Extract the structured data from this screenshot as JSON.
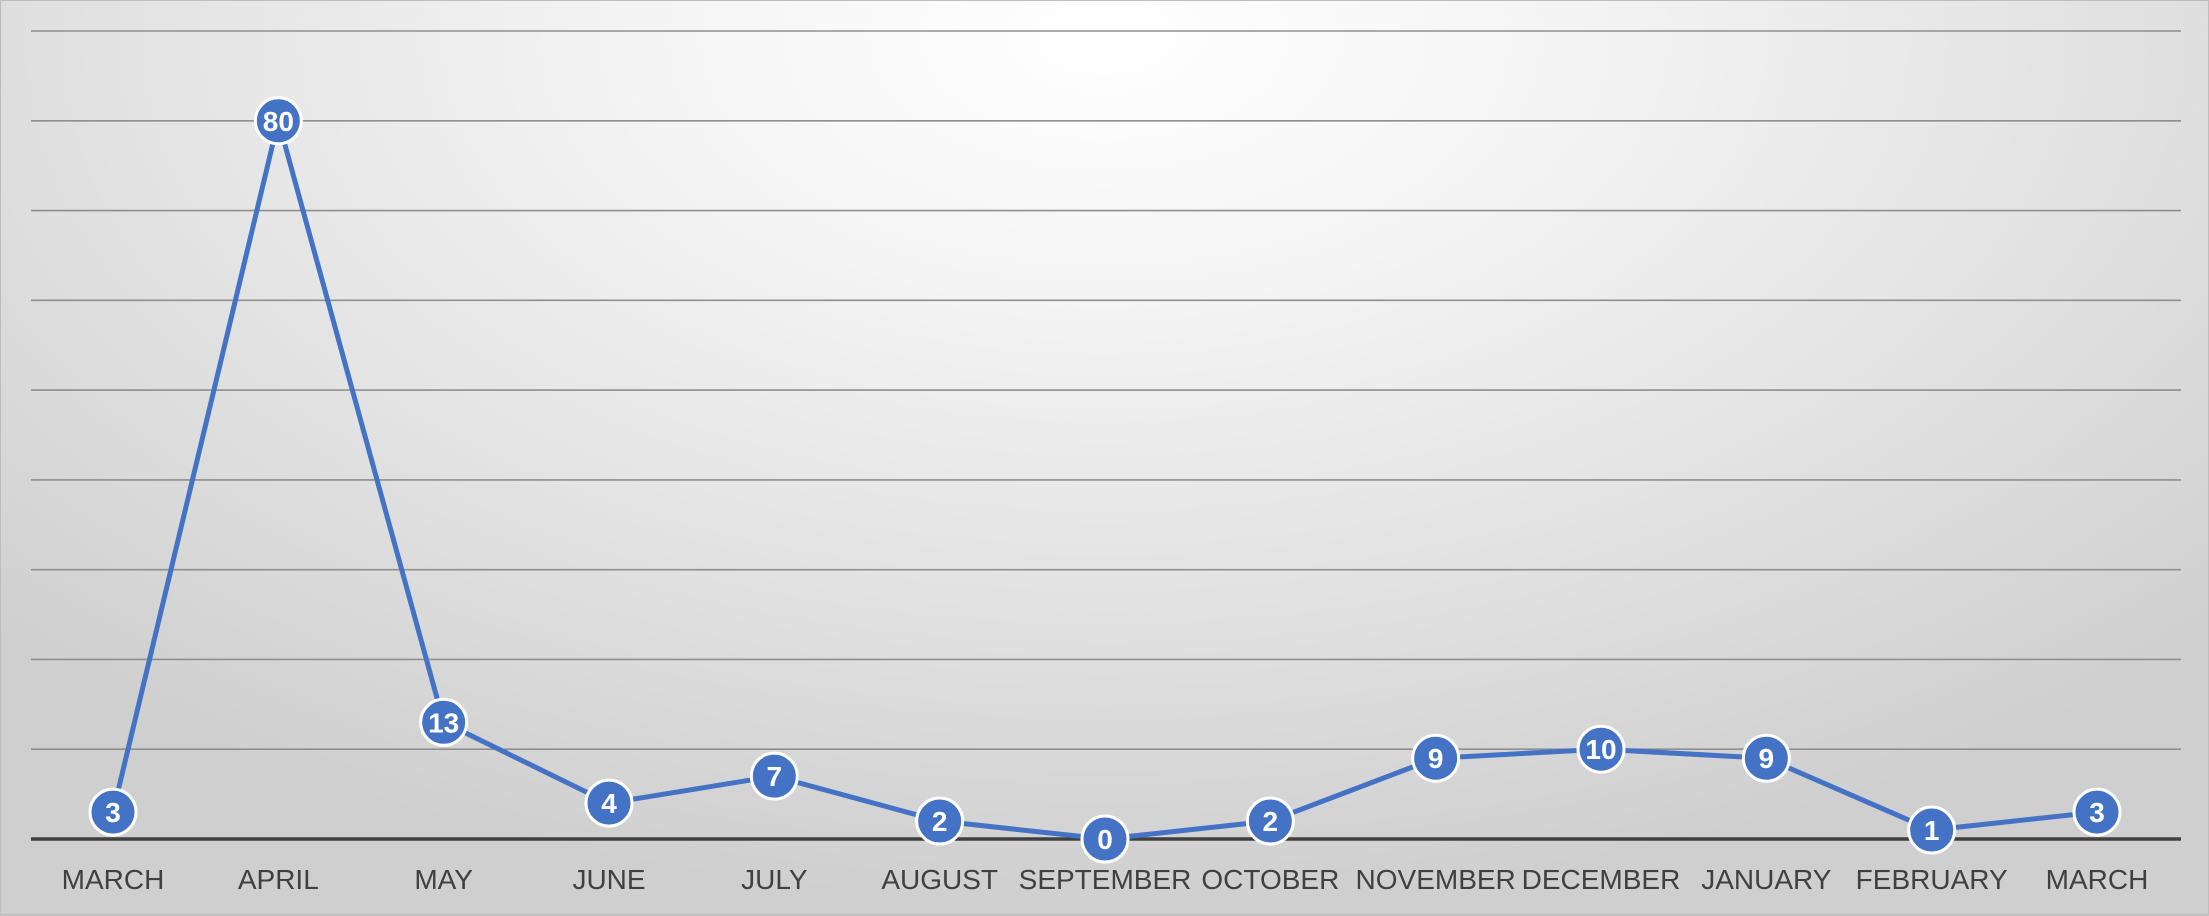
{
  "chart_data": {
    "type": "line",
    "title": "",
    "xlabel": "",
    "ylabel": "",
    "categories": [
      "MARCH",
      "APRIL",
      "MAY",
      "JUNE",
      "JULY",
      "AUGUST",
      "SEPTEMBER",
      "OCTOBER",
      "NOVEMBER",
      "DECEMBER",
      "JANUARY",
      "FEBRUARY",
      "MARCH"
    ],
    "series": [
      {
        "values": [
          3,
          80,
          13,
          4,
          7,
          2,
          0,
          2,
          9,
          10,
          9,
          1,
          3
        ]
      }
    ],
    "ylim": [
      0,
      90
    ],
    "y_gridline_step": 10,
    "grid": true,
    "legend": "none",
    "data_labels": "inside-markers",
    "colors": {
      "series": "#4472c4",
      "marker_text": "#ffffff",
      "axis": "#404040",
      "grid": "#8f8f8f",
      "tick_text": "#404040"
    }
  }
}
